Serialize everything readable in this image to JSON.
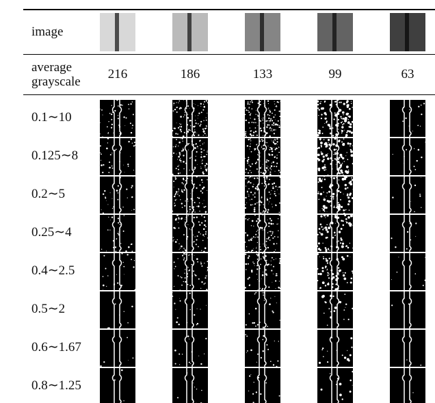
{
  "table": {
    "header": {
      "label": "image"
    },
    "grayscale": {
      "label": "average grayscale",
      "values": [
        "216",
        "186",
        "133",
        "99",
        "63"
      ]
    },
    "rows": [
      "0.1∼10",
      "0.125∼8",
      "0.2∼5",
      "0.25∼4",
      "0.4∼2.5",
      "0.5∼2",
      "0.6∼1.67",
      "0.8∼1.25"
    ]
  }
}
